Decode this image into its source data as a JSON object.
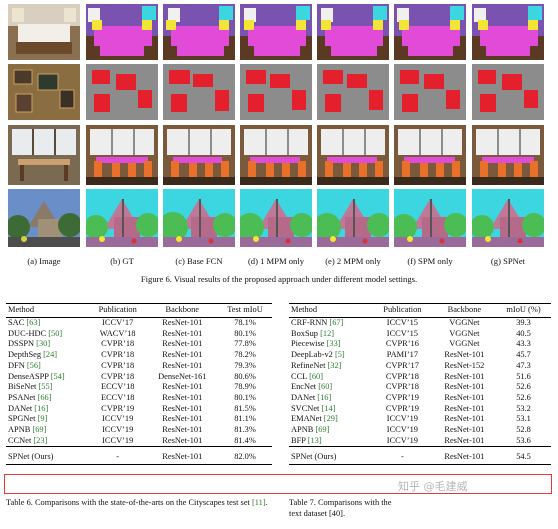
{
  "figure": {
    "column_captions": [
      "(a) Image",
      "(b) GT",
      "(c) Base FCN",
      "(d) 1 MPM only",
      "(e) 2 MPM only",
      "(f) SPM only",
      "(g) SPNet"
    ],
    "caption": "Figure 6. Visual results of the proposed approach under different model settings.",
    "row_scenes": [
      "bedroom",
      "wall-with-pictures",
      "window-dining",
      "building-street"
    ]
  },
  "table6": {
    "headers": [
      "Method",
      "Publication",
      "Backbone",
      "Test mIoU"
    ],
    "rows": [
      {
        "method": "SAC",
        "ref": "[63]",
        "pub": "ICCV’17",
        "backbone": "ResNet-101",
        "miou": "78.1%"
      },
      {
        "method": "DUC-HDC",
        "ref": "[50]",
        "pub": "WACV’18",
        "backbone": "ResNet-101",
        "miou": "80.1%"
      },
      {
        "method": "DSSPN",
        "ref": "[30]",
        "pub": "CVPR’18",
        "backbone": "ResNet-101",
        "miou": "77.8%"
      },
      {
        "method": "DepthSeg",
        "ref": "[24]",
        "pub": "CVPR’18",
        "backbone": "ResNet-101",
        "miou": "78.2%"
      },
      {
        "method": "DFN",
        "ref": "[56]",
        "pub": "CVPR’18",
        "backbone": "ResNet-101",
        "miou": "79.3%"
      },
      {
        "method": "DenseASPP",
        "ref": "[54]",
        "pub": "CVPR’18",
        "backbone": "DenseNet-161",
        "miou": "80.6%"
      },
      {
        "method": "BiSeNet",
        "ref": "[55]",
        "pub": "ECCV’18",
        "backbone": "ResNet-101",
        "miou": "78.9%"
      },
      {
        "method": "PSANet",
        "ref": "[66]",
        "pub": "ECCV’18",
        "backbone": "ResNet-101",
        "miou": "80.1%"
      },
      {
        "method": "DANet",
        "ref": "[16]",
        "pub": "CVPR’19",
        "backbone": "ResNet-101",
        "miou": "81.5%"
      },
      {
        "method": "SPGNet",
        "ref": "[9]",
        "pub": "ICCV’19",
        "backbone": "ResNet-101",
        "miou": "81.1%"
      },
      {
        "method": "APNB",
        "ref": "[69]",
        "pub": "ICCV’19",
        "backbone": "ResNet-101",
        "miou": "81.3%"
      },
      {
        "method": "CCNet",
        "ref": "[23]",
        "pub": "ICCV’19",
        "backbone": "ResNet-101",
        "miou": "81.4%"
      }
    ],
    "ours": {
      "method": "SPNet (Ours)",
      "pub": "-",
      "backbone": "ResNet-101",
      "miou": "82.0%"
    },
    "caption_prefix": "Table 6. Comparisons with the state-of-the-arts on the Cityscapes test set ",
    "caption_ref": "[11]",
    "caption_suffix": "."
  },
  "table7": {
    "headers": [
      "Method",
      "Publication",
      "Backbone",
      "mIoU (%)"
    ],
    "rows": [
      {
        "method": "CRF-RNN",
        "ref": "[67]",
        "pub": "ICCV’15",
        "backbone": "VGGNet",
        "miou": "39.3"
      },
      {
        "method": "BoxSup",
        "ref": "[12]",
        "pub": "ICCV’15",
        "backbone": "VGGNet",
        "miou": "40.5"
      },
      {
        "method": "Piecewise",
        "ref": "[33]",
        "pub": "CVPR’16",
        "backbone": "VGGNet",
        "miou": "43.3"
      },
      {
        "method": "DeepLab-v2",
        "ref": "[5]",
        "pub": "PAMI’17",
        "backbone": "ResNet-101",
        "miou": "45.7"
      },
      {
        "method": "RefineNet",
        "ref": "[32]",
        "pub": "CVPR’17",
        "backbone": "ResNet-152",
        "miou": "47.3"
      },
      {
        "method": "CCL",
        "ref": "[60]",
        "pub": "CVPR’18",
        "backbone": "ResNet-101",
        "miou": "51.6"
      },
      {
        "method": "EncNet",
        "ref": "[60]",
        "pub": "CVPR’18",
        "backbone": "ResNet-101",
        "miou": "52.6"
      },
      {
        "method": "DANet",
        "ref": "[16]",
        "pub": "CVPR’19",
        "backbone": "ResNet-101",
        "miou": "52.6"
      },
      {
        "method": "SVCNet",
        "ref": "[14]",
        "pub": "CVPR’19",
        "backbone": "ResNet-101",
        "miou": "53.2"
      },
      {
        "method": "EMANet",
        "ref": "[29]",
        "pub": "ICCV’19",
        "backbone": "ResNet-101",
        "miou": "53.1"
      },
      {
        "method": "APNB",
        "ref": "[69]",
        "pub": "ICCV’19",
        "backbone": "ResNet-101",
        "miou": "52.8"
      },
      {
        "method": "BFP",
        "ref": "[13]",
        "pub": "ICCV’19",
        "backbone": "ResNet-101",
        "miou": "53.6"
      }
    ],
    "ours": {
      "method": "SPNet (Ours)",
      "pub": "-",
      "backbone": "ResNet-101",
      "miou": "54.5"
    },
    "caption_prefix": "Table 7. Comparisons with the ",
    "caption_suffix": "text dataset [40]."
  },
  "watermark": "知乎 @毛建威",
  "colors": {
    "ref_green": "#2e7d32",
    "highlight_red": "#e53935",
    "seg_purple": "#7a52b0",
    "seg_red": "#e4202c",
    "seg_magenta": "#e24bd8",
    "seg_cyan": "#3bd6e0",
    "seg_yellow": "#f2e535",
    "seg_gray": "#8c8c8c",
    "seg_green": "#4cbc54",
    "seg_brown": "#5a3a22"
  }
}
